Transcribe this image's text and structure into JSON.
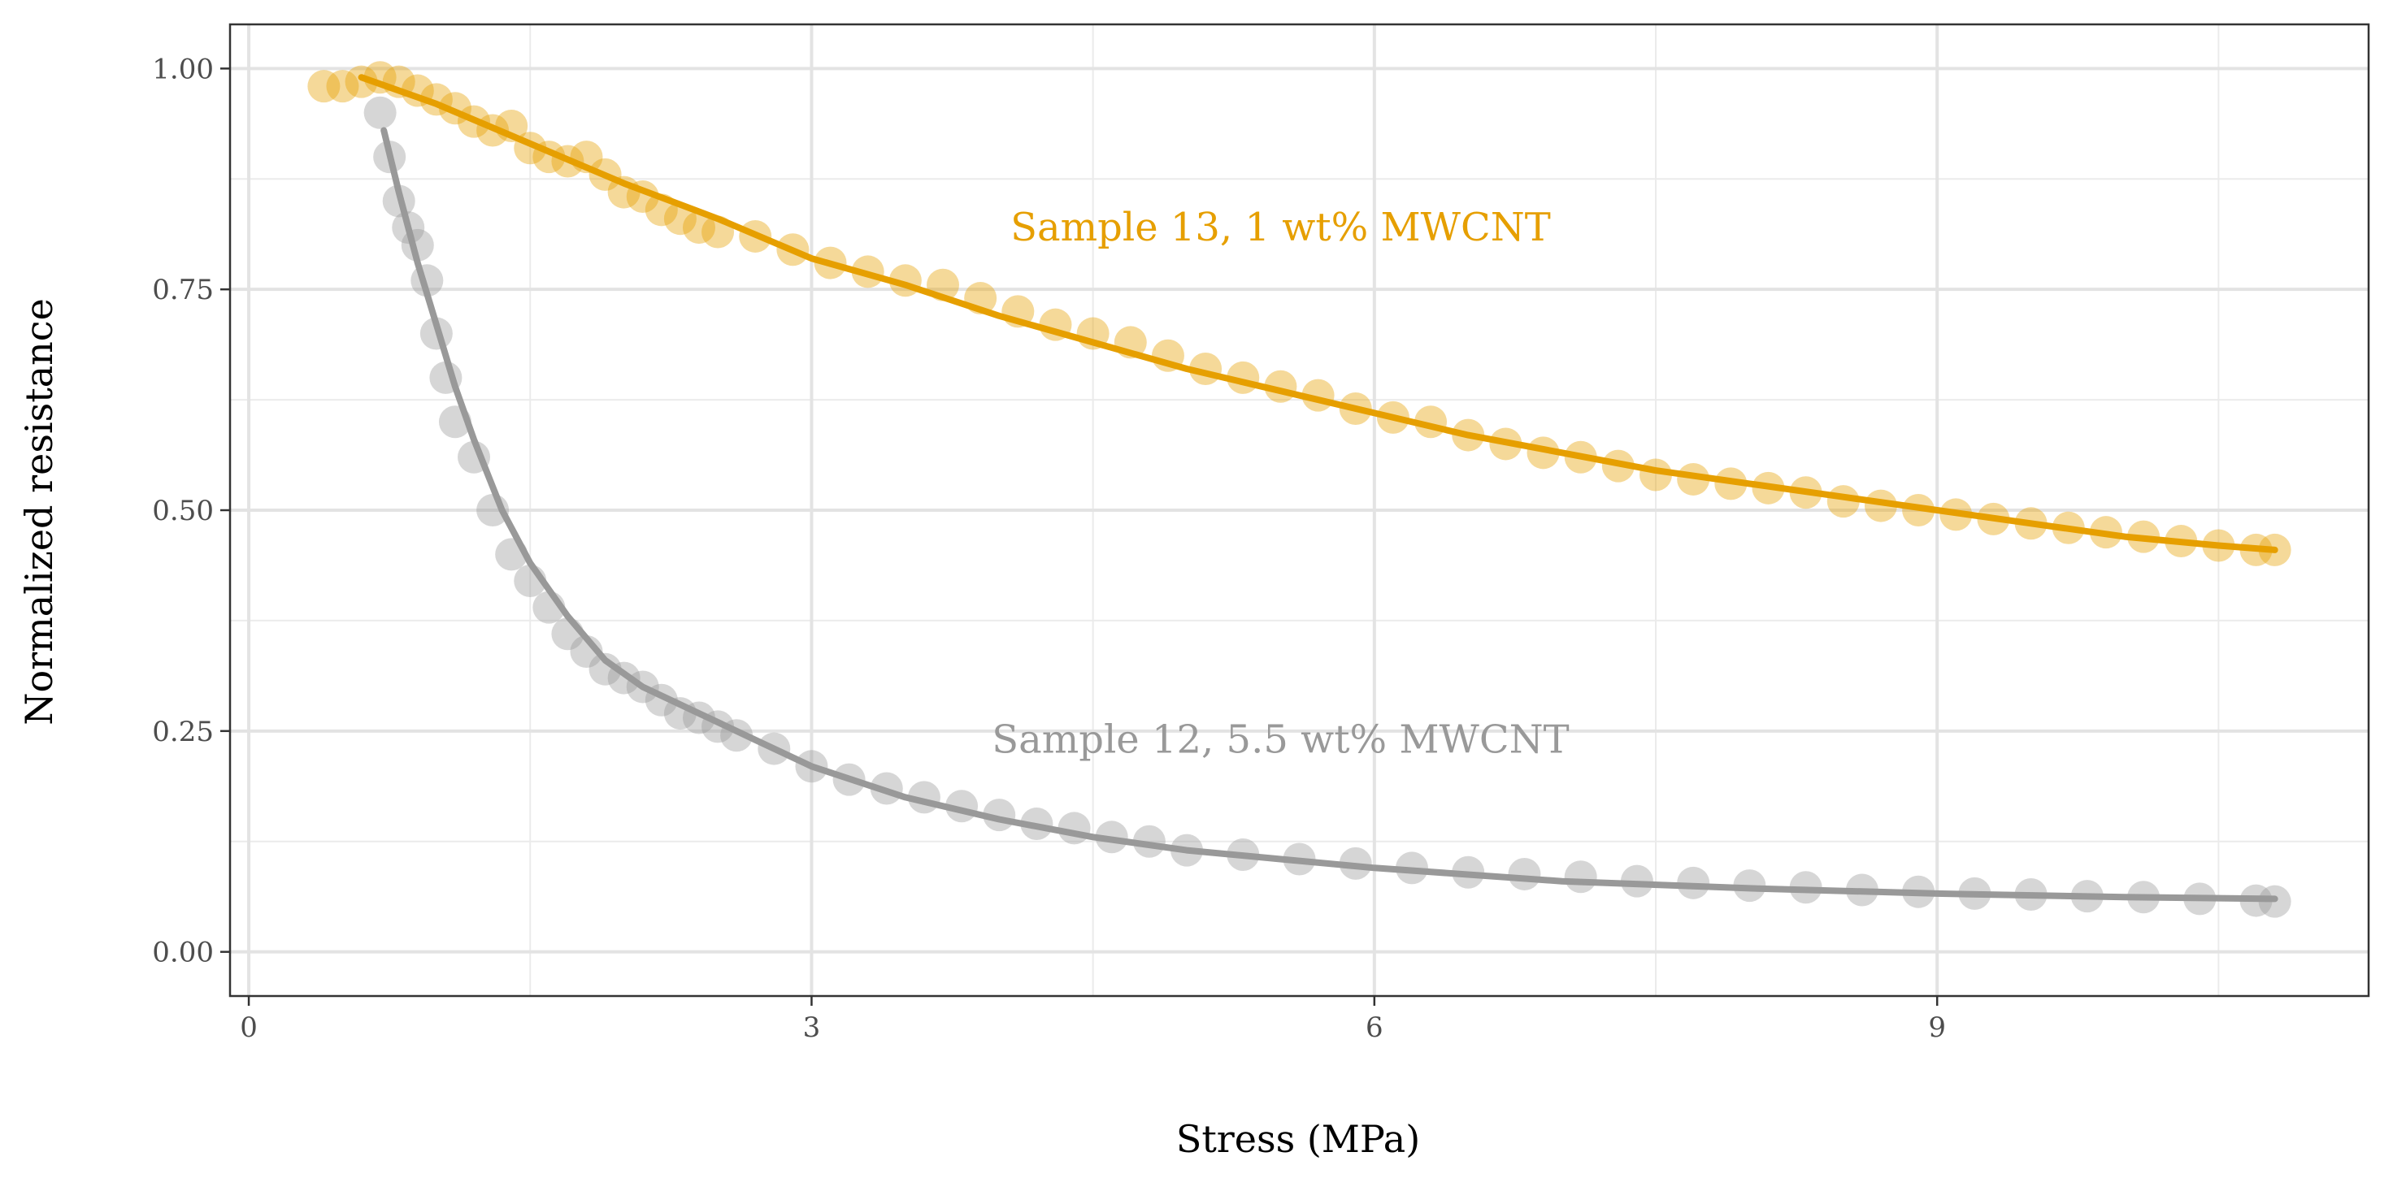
{
  "chart_data": {
    "type": "scatter",
    "title": "",
    "xlabel": "Stress (MPa)",
    "ylabel": "Normalized resistance",
    "xlim": [
      -0.1,
      11.3
    ],
    "ylim": [
      -0.05,
      1.05
    ],
    "x_ticks": [
      0,
      3,
      6,
      9
    ],
    "x_tick_labels": [
      "0",
      "3",
      "6",
      "9"
    ],
    "y_ticks": [
      0,
      0.25,
      0.5,
      0.75,
      1.0
    ],
    "y_tick_labels": [
      "0.00",
      "0.25",
      "0.50",
      "0.75",
      "1.00"
    ],
    "x_minor": [
      1.5,
      4.5,
      7.5,
      10.5
    ],
    "y_minor": [
      0.125,
      0.375,
      0.625,
      0.875
    ],
    "grid": true,
    "legend": "none",
    "series": [
      {
        "name": "Sample 13, 1 wt% MWCNT",
        "color": "#E69F00",
        "annotation": "Sample 13, 1 wt% MWCNT",
        "annotation_at": [
          5.5,
          0.82
        ],
        "x": [
          0.4,
          0.5,
          0.6,
          0.7,
          0.8,
          0.9,
          1.0,
          1.1,
          1.2,
          1.3,
          1.4,
          1.5,
          1.6,
          1.7,
          1.8,
          1.9,
          2.0,
          2.1,
          2.2,
          2.3,
          2.4,
          2.5,
          2.7,
          2.9,
          3.1,
          3.3,
          3.5,
          3.7,
          3.9,
          4.1,
          4.3,
          4.5,
          4.7,
          4.9,
          5.1,
          5.3,
          5.5,
          5.7,
          5.9,
          6.1,
          6.3,
          6.5,
          6.7,
          6.9,
          7.1,
          7.3,
          7.5,
          7.7,
          7.9,
          8.1,
          8.3,
          8.5,
          8.7,
          8.9,
          9.1,
          9.3,
          9.5,
          9.7,
          9.9,
          10.1,
          10.3,
          10.5,
          10.7,
          10.8
        ],
        "y": [
          0.98,
          0.98,
          0.985,
          0.99,
          0.985,
          0.975,
          0.965,
          0.955,
          0.94,
          0.93,
          0.935,
          0.91,
          0.9,
          0.895,
          0.9,
          0.88,
          0.86,
          0.855,
          0.84,
          0.83,
          0.82,
          0.815,
          0.81,
          0.795,
          0.78,
          0.77,
          0.76,
          0.755,
          0.74,
          0.725,
          0.71,
          0.7,
          0.69,
          0.675,
          0.66,
          0.65,
          0.64,
          0.63,
          0.615,
          0.605,
          0.6,
          0.585,
          0.575,
          0.565,
          0.56,
          0.55,
          0.54,
          0.535,
          0.53,
          0.525,
          0.52,
          0.51,
          0.505,
          0.5,
          0.495,
          0.49,
          0.485,
          0.48,
          0.475,
          0.47,
          0.465,
          0.46,
          0.455,
          0.455
        ],
        "fit_x": [
          0.6,
          1.0,
          1.5,
          2.0,
          2.5,
          3.0,
          3.5,
          4.0,
          4.5,
          5.0,
          5.5,
          6.0,
          6.5,
          7.0,
          7.5,
          8.0,
          8.5,
          9.0,
          9.5,
          10.0,
          10.5,
          10.8
        ],
        "fit_y": [
          0.99,
          0.96,
          0.915,
          0.87,
          0.83,
          0.785,
          0.755,
          0.72,
          0.69,
          0.66,
          0.635,
          0.61,
          0.585,
          0.565,
          0.545,
          0.53,
          0.515,
          0.5,
          0.485,
          0.47,
          0.46,
          0.455
        ]
      },
      {
        "name": "Sample 12, 5.5 wt% MWCNT",
        "color": "#999999",
        "annotation": "Sample 12, 5.5 wt% MWCNT",
        "annotation_at": [
          5.5,
          0.24
        ],
        "x": [
          0.7,
          0.75,
          0.8,
          0.85,
          0.9,
          0.95,
          1.0,
          1.05,
          1.1,
          1.2,
          1.3,
          1.4,
          1.5,
          1.6,
          1.7,
          1.8,
          1.9,
          2.0,
          2.1,
          2.2,
          2.3,
          2.4,
          2.5,
          2.6,
          2.8,
          3.0,
          3.2,
          3.4,
          3.6,
          3.8,
          4.0,
          4.2,
          4.4,
          4.6,
          4.8,
          5.0,
          5.3,
          5.6,
          5.9,
          6.2,
          6.5,
          6.8,
          7.1,
          7.4,
          7.7,
          8.0,
          8.3,
          8.6,
          8.9,
          9.2,
          9.5,
          9.8,
          10.1,
          10.4,
          10.7,
          10.8
        ],
        "y": [
          0.95,
          0.9,
          0.85,
          0.82,
          0.8,
          0.76,
          0.7,
          0.65,
          0.6,
          0.56,
          0.5,
          0.45,
          0.42,
          0.39,
          0.36,
          0.34,
          0.32,
          0.31,
          0.3,
          0.285,
          0.27,
          0.265,
          0.255,
          0.245,
          0.23,
          0.21,
          0.195,
          0.185,
          0.175,
          0.165,
          0.155,
          0.145,
          0.14,
          0.13,
          0.125,
          0.115,
          0.11,
          0.105,
          0.1,
          0.095,
          0.09,
          0.088,
          0.085,
          0.08,
          0.078,
          0.075,
          0.073,
          0.07,
          0.068,
          0.066,
          0.065,
          0.063,
          0.062,
          0.06,
          0.058,
          0.057
        ],
        "fit_x": [
          0.72,
          0.8,
          0.9,
          1.0,
          1.1,
          1.2,
          1.35,
          1.5,
          1.7,
          1.9,
          2.1,
          2.4,
          2.7,
          3.0,
          3.5,
          4.0,
          4.5,
          5.0,
          5.5,
          6.0,
          7.0,
          8.0,
          9.0,
          10.0,
          10.8
        ],
        "fit_y": [
          0.93,
          0.86,
          0.78,
          0.71,
          0.64,
          0.58,
          0.5,
          0.44,
          0.38,
          0.33,
          0.3,
          0.27,
          0.24,
          0.21,
          0.175,
          0.15,
          0.13,
          0.115,
          0.105,
          0.095,
          0.08,
          0.072,
          0.066,
          0.062,
          0.06
        ]
      }
    ]
  }
}
